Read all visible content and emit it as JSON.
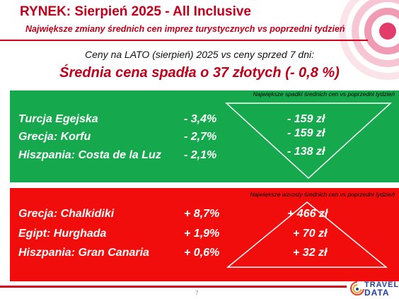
{
  "header": {
    "title": "RYNEK: Sierpień 2025 - All Inclusive",
    "subtitle": "Największe zmiany średnich cen imprez turystycznych vs poprzedni tydzień"
  },
  "lead": "Ceny na LATO (sierpień) 2025 vs ceny sprzed 7 dni:",
  "headline": "Średnia cena spadła o 37 złotych (- 0,8 %)",
  "decreases": {
    "caption": "Największe spadki średnich cen vs poprzedni tydzień",
    "rows": [
      {
        "name": "Turcja Egejska",
        "pct": "-  3,4%",
        "amount": "- 159 zł"
      },
      {
        "name": "Grecja: Korfu",
        "pct": "-  2,7%",
        "amount": "- 159 zł"
      },
      {
        "name": "Hiszpania: Costa de la Luz",
        "pct": "-  2,1%",
        "amount": "- 138 zł"
      }
    ]
  },
  "increases": {
    "caption": "Największe wzrosty średnich cen vs poprzedni tydzień",
    "rows": [
      {
        "name": "Grecja: Chalkidiki",
        "pct": "+ 8,7%",
        "amount": "+ 466 zł"
      },
      {
        "name": "Egipt: Hurghada",
        "pct": "+ 1,9%",
        "amount": "+ 70 zł"
      },
      {
        "name": "Hiszpania: Gran Canaria",
        "pct": "+ 0,6%",
        "amount": "+ 32 zł"
      }
    ]
  },
  "footer": {
    "page_number": "7",
    "logo": "TRAVEL DATA"
  },
  "colors": {
    "accent": "#c0001a",
    "green_panel": "#16a84d",
    "red_panel": "#f20d0d",
    "logo_blue": "#1e3f9e"
  }
}
